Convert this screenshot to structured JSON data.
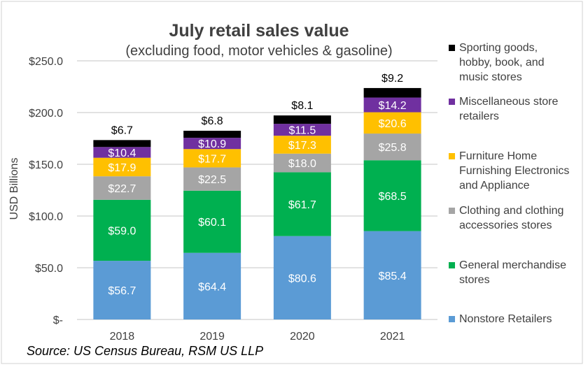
{
  "chart_data": {
    "type": "bar",
    "stacked": true,
    "title": "July retail sales value",
    "subtitle": "(excluding food, motor vehicles & gasoline)",
    "xlabel": "",
    "ylabel": "USD Billions",
    "ylim": [
      0,
      250
    ],
    "yticks": [
      "$-",
      "$50.0",
      "$100.0",
      "$150.0",
      "$200.0",
      "$250.0"
    ],
    "ytick_values": [
      0,
      50,
      100,
      150,
      200,
      250
    ],
    "grid": true,
    "legend": "right",
    "categories": [
      "2018",
      "2019",
      "2020",
      "2021"
    ],
    "series": [
      {
        "name": "Nonstore Retailers",
        "color": "#5b9bd5",
        "label_color": "#ffffff",
        "values": [
          56.7,
          64.4,
          80.6,
          85.4
        ],
        "labels": [
          "$56.7",
          "$64.4",
          "$80.6",
          "$85.4"
        ]
      },
      {
        "name": "General merchandise stores",
        "color": "#00b050",
        "label_color": "#ffffff",
        "values": [
          59.0,
          60.1,
          61.7,
          68.5
        ],
        "labels": [
          "$59.0",
          "$60.1",
          "$61.7",
          "$68.5"
        ]
      },
      {
        "name": "Clothing and clothing accessories stores",
        "color": "#a5a5a5",
        "label_color": "#ffffff",
        "values": [
          22.7,
          22.5,
          18.0,
          25.8
        ],
        "labels": [
          "$22.7",
          "$22.5",
          "$18.0",
          "$25.8"
        ]
      },
      {
        "name": "Furniture Home Furnishing Electronics and Appliance",
        "color": "#ffc000",
        "label_color": "#ffffff",
        "values": [
          17.9,
          17.7,
          17.3,
          20.6
        ],
        "labels": [
          "$17.9",
          "$17.7",
          "$17.3",
          "$20.6"
        ]
      },
      {
        "name": "Miscellaneous store retailers",
        "color": "#7030a0",
        "label_color": "#ffffff",
        "values": [
          10.4,
          10.9,
          11.5,
          14.2
        ],
        "labels": [
          "$10.4",
          "$10.9",
          "$11.5",
          "$14.2"
        ]
      },
      {
        "name": "Sporting goods, hobby, book, and music stores",
        "color": "#000000",
        "label_color": "#000000",
        "label_position": "above",
        "values": [
          6.7,
          6.8,
          8.1,
          9.2
        ],
        "labels": [
          "$6.7",
          "$6.8",
          "$8.1",
          "$9.2"
        ]
      }
    ],
    "legend_lines": [
      [
        "Sporting goods,",
        "hobby, book, and",
        "music stores"
      ],
      [
        "Miscellaneous store",
        "retailers"
      ],
      [
        "Furniture Home",
        "Furnishing Electronics",
        "and Appliance"
      ],
      [
        "Clothing and clothing",
        "accessories stores"
      ],
      [
        "General merchandise",
        "stores"
      ],
      [
        "Nonstore Retailers"
      ]
    ],
    "source": "Source: US Census Bureau, RSM US LLP"
  }
}
